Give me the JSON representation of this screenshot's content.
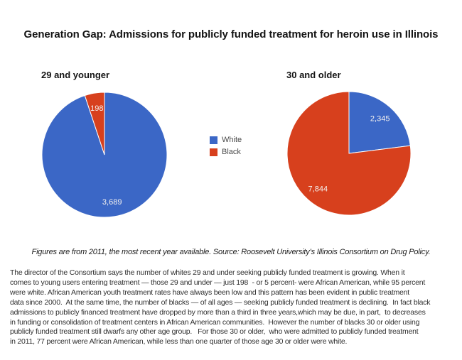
{
  "page": {
    "background": "#ffffff",
    "title": "Generation Gap: Admissions for publicly funded treatment for heroin use in Illinois"
  },
  "chart_data": [
    {
      "type": "pie",
      "title": "29 and younger",
      "labels": [
        "White",
        "Black"
      ],
      "values": [
        3689,
        198
      ],
      "value_labels": [
        "3,689",
        "198"
      ],
      "colors": [
        "#3b67c6",
        "#d7401d"
      ],
      "start_angle": "12 o'clock, clockwise",
      "legend_position": "center between pies"
    },
    {
      "type": "pie",
      "title": "30 and older",
      "labels": [
        "White",
        "Black"
      ],
      "values": [
        2345,
        7844
      ],
      "value_labels": [
        "2,345",
        "7,844"
      ],
      "colors": [
        "#3b67c6",
        "#d7401d"
      ],
      "start_angle": "12 o'clock, clockwise"
    }
  ],
  "legend": {
    "items": [
      {
        "label": "White",
        "color": "#3b67c6"
      },
      {
        "label": "Black",
        "color": "#d7401d"
      }
    ]
  },
  "caption": "Figures are from 2011, the most recent year available. Source: Roosevelt University’s Illinois Consortium on Drug Policy.",
  "body": {
    "lines": [
      "The director of the Consortium says the number of whites 29 and under seeking publicly funded treatment is growing. When it",
      "comes to young users entering treatment — those 29 and under — just 198  - or 5 percent- were African American, while 95 percent",
      "were white. African American youth treatment rates have always been low and this pattern has been evident in public treatment",
      "data since 2000.  At the same time, the number of blacks — of all ages — seeking publicly funded treatment is declining.  In fact black",
      "admissions to publicly financed treatment have dropped by more than a third in three years,which may be due, in part,  to decreases",
      "in funding or consolidation of treatment centers in African American communities.  However the number of blacks 30 or older using",
      "publicly funded treatment still dwarfs any other age group.   For those 30 or older,  who were admitted to publicly funded treatment",
      "in 2011, 77 percent were African American, while less than one quarter of those age 30 or older were white."
    ]
  }
}
